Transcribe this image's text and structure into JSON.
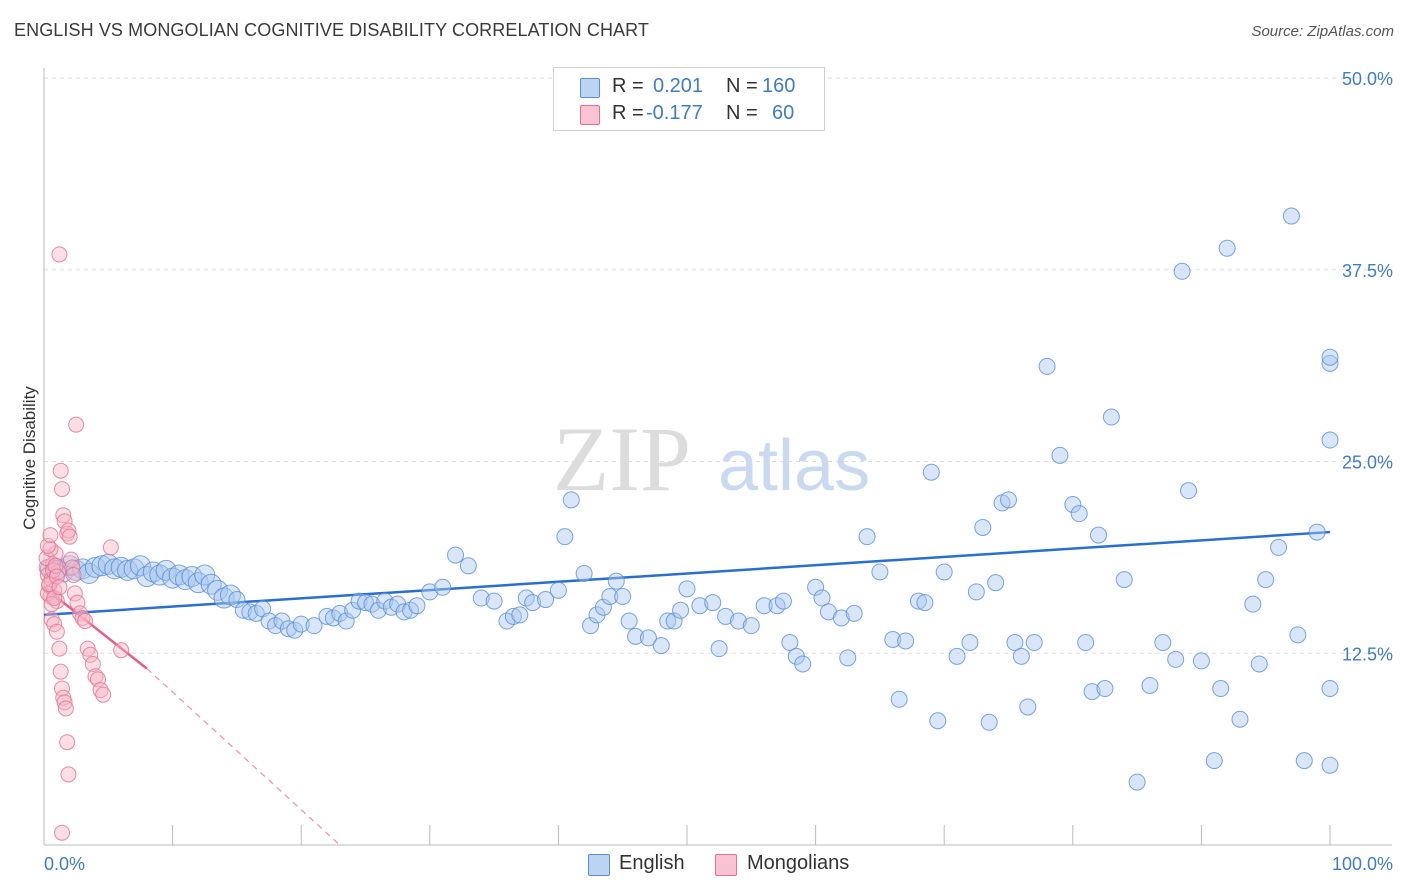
{
  "title": "ENGLISH VS MONGOLIAN COGNITIVE DISABILITY CORRELATION CHART",
  "source": "Source: ZipAtlas.com",
  "watermark": {
    "zip": "ZIP",
    "atlas": "atlas"
  },
  "legend": {
    "rows": [
      {
        "r_label": "R =",
        "r_value": "0.201",
        "n_label": "N =",
        "n_value": "160"
      },
      {
        "r_label": "R =",
        "r_value": "-0.177",
        "n_label": "N =",
        "n_value": "60"
      }
    ]
  },
  "bottom_legend": {
    "english": "English",
    "mongolians": "Mongolians"
  },
  "colors": {
    "english_fill": "#a9c8ef",
    "english_stroke": "#5a8fd6",
    "english_line": "#2a6fcf",
    "mongolian_fill": "#f7b6c8",
    "mongolian_stroke": "#e2708f",
    "mongolian_line": "#e2608a",
    "axis_label": "#3e7cc8"
  },
  "chart_data": {
    "type": "scatter",
    "title": "ENGLISH VS MONGOLIAN COGNITIVE DISABILITY CORRELATION CHART",
    "xlabel": "",
    "ylabel": "Cognitive Disability",
    "xlim": [
      0,
      100
    ],
    "ylim": [
      0,
      50
    ],
    "x_tick_labels": [
      "0.0%",
      "100.0%"
    ],
    "y_ticks": [
      12.5,
      25.0,
      37.5,
      50.0
    ],
    "y_tick_labels": [
      "12.5%",
      "25.0%",
      "37.5%",
      "50.0%"
    ],
    "grid": true,
    "legend_position": "top-center",
    "series": [
      {
        "name": "English",
        "r": 0.201,
        "n": 160,
        "trend": {
          "x": [
            0,
            100
          ],
          "y": [
            15.0,
            20.4
          ]
        },
        "points": [
          [
            0.5,
            18.0
          ],
          [
            1.0,
            18.0
          ],
          [
            1.5,
            17.8
          ],
          [
            2.0,
            18.2
          ],
          [
            2.5,
            17.9
          ],
          [
            3.0,
            18.0
          ],
          [
            3.5,
            17.7
          ],
          [
            4.0,
            18.1
          ],
          [
            4.5,
            18.2
          ],
          [
            5.0,
            18.3
          ],
          [
            5.5,
            18.0
          ],
          [
            6.0,
            18.1
          ],
          [
            6.5,
            17.9
          ],
          [
            7.0,
            18.0
          ],
          [
            7.5,
            18.2
          ],
          [
            8.0,
            17.5
          ],
          [
            8.5,
            17.8
          ],
          [
            9.0,
            17.6
          ],
          [
            9.5,
            17.9
          ],
          [
            10.0,
            17.4
          ],
          [
            10.5,
            17.6
          ],
          [
            11.0,
            17.3
          ],
          [
            11.5,
            17.5
          ],
          [
            12.0,
            17.1
          ],
          [
            12.5,
            17.6
          ],
          [
            13.0,
            17.0
          ],
          [
            13.5,
            16.6
          ],
          [
            14.0,
            16.1
          ],
          [
            14.5,
            16.3
          ],
          [
            15.0,
            16.0
          ],
          [
            15.5,
            15.3
          ],
          [
            16.0,
            15.2
          ],
          [
            16.5,
            15.1
          ],
          [
            17.0,
            15.4
          ],
          [
            17.5,
            14.6
          ],
          [
            18.0,
            14.3
          ],
          [
            18.5,
            14.6
          ],
          [
            19.0,
            14.1
          ],
          [
            19.5,
            14.0
          ],
          [
            20.0,
            14.4
          ],
          [
            21.0,
            14.3
          ],
          [
            22.0,
            14.9
          ],
          [
            22.5,
            14.8
          ],
          [
            23.0,
            15.1
          ],
          [
            23.5,
            14.6
          ],
          [
            24.0,
            15.3
          ],
          [
            24.5,
            15.9
          ],
          [
            25.0,
            15.8
          ],
          [
            25.5,
            15.7
          ],
          [
            26.0,
            15.3
          ],
          [
            26.5,
            15.9
          ],
          [
            27.0,
            15.5
          ],
          [
            27.5,
            15.7
          ],
          [
            28.0,
            15.2
          ],
          [
            28.5,
            15.3
          ],
          [
            29.0,
            15.6
          ],
          [
            30.0,
            16.5
          ],
          [
            31.0,
            16.8
          ],
          [
            32.0,
            18.9
          ],
          [
            33.0,
            18.2
          ],
          [
            34.0,
            16.1
          ],
          [
            35.0,
            15.9
          ],
          [
            36.0,
            14.6
          ],
          [
            36.5,
            14.9
          ],
          [
            37.0,
            15.0
          ],
          [
            37.5,
            16.1
          ],
          [
            38.0,
            15.8
          ],
          [
            39.0,
            16.0
          ],
          [
            40.0,
            16.6
          ],
          [
            40.5,
            20.1
          ],
          [
            41.0,
            22.5
          ],
          [
            42.0,
            17.7
          ],
          [
            42.5,
            14.3
          ],
          [
            43.0,
            15.0
          ],
          [
            43.5,
            15.5
          ],
          [
            44.0,
            16.2
          ],
          [
            44.5,
            17.2
          ],
          [
            45.0,
            16.2
          ],
          [
            45.5,
            14.6
          ],
          [
            46.0,
            13.6
          ],
          [
            47.0,
            13.5
          ],
          [
            48.0,
            13.0
          ],
          [
            48.5,
            14.6
          ],
          [
            49.0,
            14.6
          ],
          [
            49.5,
            15.3
          ],
          [
            50.0,
            16.7
          ],
          [
            51.0,
            15.6
          ],
          [
            52.0,
            15.8
          ],
          [
            52.5,
            12.8
          ],
          [
            53.0,
            14.9
          ],
          [
            54.0,
            14.6
          ],
          [
            55.0,
            14.3
          ],
          [
            56.0,
            15.6
          ],
          [
            57.0,
            15.6
          ],
          [
            57.5,
            15.9
          ],
          [
            58.0,
            13.2
          ],
          [
            58.5,
            12.3
          ],
          [
            59.0,
            11.8
          ],
          [
            60.0,
            16.8
          ],
          [
            60.5,
            16.1
          ],
          [
            61.0,
            15.2
          ],
          [
            62.0,
            14.8
          ],
          [
            62.5,
            12.2
          ],
          [
            63.0,
            15.1
          ],
          [
            64.0,
            20.1
          ],
          [
            65.0,
            17.8
          ],
          [
            66.0,
            13.4
          ],
          [
            66.5,
            9.5
          ],
          [
            67.0,
            13.3
          ],
          [
            68.0,
            15.9
          ],
          [
            68.5,
            15.8
          ],
          [
            69.0,
            24.3
          ],
          [
            69.5,
            8.1
          ],
          [
            70.0,
            17.8
          ],
          [
            71.0,
            12.3
          ],
          [
            72.0,
            13.2
          ],
          [
            72.5,
            16.5
          ],
          [
            73.0,
            20.7
          ],
          [
            73.5,
            8.0
          ],
          [
            74.0,
            17.1
          ],
          [
            74.5,
            22.3
          ],
          [
            75.0,
            22.5
          ],
          [
            75.5,
            13.2
          ],
          [
            76.0,
            12.3
          ],
          [
            76.5,
            9.0
          ],
          [
            77.0,
            13.2
          ],
          [
            78.0,
            31.2
          ],
          [
            79.0,
            25.4
          ],
          [
            80.0,
            22.2
          ],
          [
            80.5,
            21.6
          ],
          [
            81.0,
            13.2
          ],
          [
            81.5,
            10.0
          ],
          [
            82.0,
            20.2
          ],
          [
            82.5,
            10.2
          ],
          [
            83.0,
            27.9
          ],
          [
            84.0,
            17.3
          ],
          [
            85.0,
            4.1
          ],
          [
            86.0,
            10.4
          ],
          [
            87.0,
            13.2
          ],
          [
            88.0,
            12.1
          ],
          [
            88.5,
            37.4
          ],
          [
            89.0,
            23.1
          ],
          [
            90.0,
            12.0
          ],
          [
            91.0,
            5.5
          ],
          [
            91.5,
            10.2
          ],
          [
            92.0,
            38.9
          ],
          [
            93.0,
            8.2
          ],
          [
            94.0,
            15.7
          ],
          [
            94.5,
            11.8
          ],
          [
            95.0,
            17.3
          ],
          [
            96.0,
            19.4
          ],
          [
            97.0,
            41.0
          ],
          [
            97.5,
            13.7
          ],
          [
            98.0,
            5.5
          ],
          [
            99.0,
            20.4
          ],
          [
            100.0,
            26.4
          ],
          [
            100.5,
            31.4
          ],
          [
            101.0,
            31.8
          ],
          [
            102.0,
            10.2
          ],
          [
            103.0,
            5.2
          ]
        ]
      },
      {
        "name": "Mongolians",
        "r": -0.177,
        "n": 60,
        "trend_solid": {
          "x": [
            0,
            8
          ],
          "y": [
            16.8,
            11.5
          ]
        },
        "trend_dashed": {
          "x": [
            8,
            23
          ],
          "y": [
            11.5,
            0
          ]
        },
        "points": [
          [
            0.2,
            18.1
          ],
          [
            0.3,
            17.6
          ],
          [
            0.4,
            16.9
          ],
          [
            0.5,
            16.2
          ],
          [
            0.6,
            17.3
          ],
          [
            0.7,
            18.3
          ],
          [
            0.8,
            16.6
          ],
          [
            0.9,
            19.0
          ],
          [
            1.0,
            15.9
          ],
          [
            1.1,
            17.8
          ],
          [
            0.2,
            18.7
          ],
          [
            0.3,
            16.4
          ],
          [
            0.4,
            17.0
          ],
          [
            0.5,
            19.3
          ],
          [
            0.6,
            15.7
          ],
          [
            0.7,
            17.9
          ],
          [
            0.8,
            16.1
          ],
          [
            0.9,
            18.2
          ],
          [
            1.0,
            17.5
          ],
          [
            1.2,
            16.8
          ],
          [
            0.3,
            19.5
          ],
          [
            0.5,
            20.2
          ],
          [
            0.6,
            14.7
          ],
          [
            0.8,
            14.4
          ],
          [
            1.0,
            13.9
          ],
          [
            1.2,
            12.8
          ],
          [
            1.3,
            11.3
          ],
          [
            1.4,
            10.2
          ],
          [
            1.5,
            9.6
          ],
          [
            1.6,
            9.3
          ],
          [
            1.7,
            8.9
          ],
          [
            1.8,
            6.7
          ],
          [
            1.9,
            4.6
          ],
          [
            1.4,
            0.8
          ],
          [
            1.2,
            38.5
          ],
          [
            2.5,
            27.4
          ],
          [
            1.3,
            24.4
          ],
          [
            1.4,
            23.2
          ],
          [
            1.5,
            21.5
          ],
          [
            1.6,
            21.1
          ],
          [
            1.8,
            20.3
          ],
          [
            1.9,
            20.5
          ],
          [
            2.0,
            20.1
          ],
          [
            2.1,
            18.6
          ],
          [
            2.2,
            18.1
          ],
          [
            2.3,
            17.6
          ],
          [
            2.4,
            16.4
          ],
          [
            2.6,
            15.8
          ],
          [
            2.8,
            15.1
          ],
          [
            3.0,
            14.8
          ],
          [
            3.2,
            14.6
          ],
          [
            3.4,
            12.8
          ],
          [
            3.6,
            12.4
          ],
          [
            3.8,
            11.8
          ],
          [
            4.0,
            11.0
          ],
          [
            4.2,
            10.8
          ],
          [
            4.4,
            10.1
          ],
          [
            4.6,
            9.8
          ],
          [
            5.2,
            19.4
          ],
          [
            6.0,
            12.7
          ]
        ]
      }
    ]
  }
}
